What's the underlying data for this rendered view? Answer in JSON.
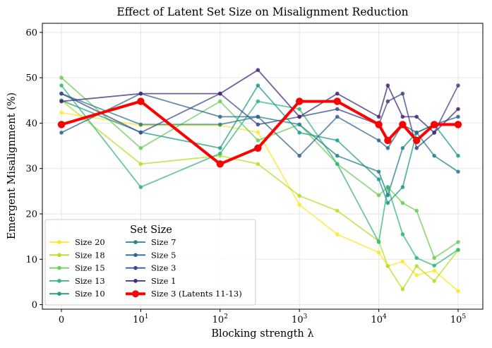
{
  "chart_data": {
    "type": "line",
    "title": "Effect of Latent Set Size on Misalignment Reduction",
    "xlabel": "Blocking strength λ",
    "ylabel": "Emergent Misalignment (%)",
    "xscale": "symlog",
    "ylim": [
      -1,
      62
    ],
    "yticks": [
      0,
      10,
      20,
      30,
      40,
      50,
      60
    ],
    "xticks": [
      {
        "value": 0,
        "base": "0",
        "exp": ""
      },
      {
        "value": 10,
        "base": "10",
        "exp": "1"
      },
      {
        "value": 100,
        "base": "10",
        "exp": "2"
      },
      {
        "value": 1000,
        "base": "10",
        "exp": "3"
      },
      {
        "value": 10000,
        "base": "10",
        "exp": "4"
      },
      {
        "value": 100000,
        "base": "10",
        "exp": "5"
      }
    ],
    "grid": true,
    "legend": {
      "title": "Set Size",
      "placement": "bottom-left",
      "columns": 2
    },
    "x": [
      0,
      10,
      100,
      300,
      1000,
      3000,
      10000,
      13000,
      20000,
      30000,
      50000,
      100000
    ],
    "series": [
      {
        "name": "Size 20",
        "color": "#fde725",
        "values": [
          42.3,
          39.5,
          39.5,
          38.0,
          22.0,
          15.5,
          11.5,
          8.5,
          9.5,
          6.5,
          7.5,
          3.0
        ]
      },
      {
        "name": "Size 18",
        "color": "#b5de2b",
        "values": [
          45.0,
          31.0,
          32.8,
          31.0,
          24.0,
          20.7,
          14.0,
          8.5,
          3.4,
          8.5,
          5.2,
          12.0
        ]
      },
      {
        "name": "Size 15",
        "color": "#6ece58",
        "values": [
          50.0,
          34.5,
          44.8,
          36.2,
          39.7,
          31.0,
          24.1,
          25.9,
          22.4,
          20.7,
          10.3,
          13.8
        ]
      },
      {
        "name": "Size 13",
        "color": "#35b779",
        "values": [
          48.3,
          25.9,
          33.3,
          44.8,
          43.1,
          31.0,
          13.8,
          25.9,
          15.5,
          10.3,
          8.6,
          12.1
        ]
      },
      {
        "name": "Size 10",
        "color": "#1f9e89",
        "values": [
          45.0,
          38.0,
          34.5,
          48.3,
          37.9,
          36.2,
          27.6,
          22.4,
          25.9,
          37.9,
          39.7,
          32.8
        ]
      },
      {
        "name": "Size 7",
        "color": "#26828e",
        "values": [
          46.5,
          39.7,
          39.7,
          41.4,
          39.7,
          32.8,
          29.3,
          24.1,
          34.5,
          37.9,
          32.8,
          29.3
        ]
      },
      {
        "name": "Size 5",
        "color": "#31688e",
        "values": [
          37.9,
          46.5,
          41.4,
          41.4,
          32.8,
          41.4,
          36.2,
          34.5,
          39.7,
          37.9,
          39.7,
          41.4
        ]
      },
      {
        "name": "Size 3",
        "color": "#3e4989",
        "values": [
          46.5,
          37.9,
          46.5,
          39.7,
          41.4,
          43.1,
          39.7,
          44.8,
          46.5,
          34.5,
          37.9,
          48.3
        ]
      },
      {
        "name": "Size 1",
        "color": "#482878",
        "values": [
          44.8,
          46.5,
          46.5,
          51.7,
          41.4,
          46.5,
          41.4,
          48.3,
          41.4,
          41.4,
          37.9,
          43.1
        ]
      },
      {
        "name": "Size 3 (Latents 11-13)",
        "color": "#ff0000",
        "highlight": true,
        "values": [
          39.7,
          44.8,
          31.0,
          34.5,
          44.8,
          44.8,
          39.7,
          36.2,
          39.7,
          36.2,
          39.7,
          39.7
        ]
      }
    ]
  }
}
